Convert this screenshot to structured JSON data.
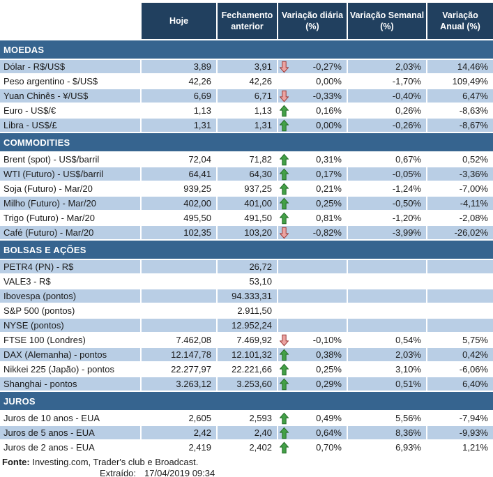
{
  "colors": {
    "header_bg": "#21405f",
    "section_bg": "#36648f",
    "shaded_row_bg": "#b9cee5",
    "up_arrow_fill": "#43a047",
    "up_arrow_stroke": "#256d29",
    "down_arrow_fill": "#eba3a1",
    "down_arrow_stroke": "#9c3a38"
  },
  "chart_data": {
    "type": "table",
    "columns": [
      {
        "key": "hoje",
        "label": "Hoje"
      },
      {
        "key": "fechamento-anterior",
        "label": "Fechamento\nanterior"
      },
      {
        "key": "variacao-diaria",
        "label": "Variação diária\n(%)"
      },
      {
        "key": "variacao-semanal",
        "label": "Variação Semanal\n(%)"
      },
      {
        "key": "variacao-anual",
        "label": "Variação\nAnual (%)"
      }
    ],
    "sections": [
      {
        "key": "moedas",
        "title": "MOEDAS",
        "rows": [
          {
            "label": "Dólar - R$/US$",
            "hoje": "3,89",
            "fechamento": "3,91",
            "arrow": "down",
            "var_diaria": "-0,27%",
            "var_semanal": "2,03%",
            "var_anual": "14,46%",
            "shaded": true
          },
          {
            "label": "Peso argentino - $/US$",
            "hoje": "42,26",
            "fechamento": "42,26",
            "arrow": null,
            "var_diaria": "0,00%",
            "var_semanal": "-1,70%",
            "var_anual": "109,49%",
            "shaded": false
          },
          {
            "label": "Yuan Chinês - ¥/US$",
            "hoje": "6,69",
            "fechamento": "6,71",
            "arrow": "down",
            "var_diaria": "-0,33%",
            "var_semanal": "-0,40%",
            "var_anual": "6,47%",
            "shaded": true
          },
          {
            "label": "Euro - US$/€",
            "hoje": "1,13",
            "fechamento": "1,13",
            "arrow": "up",
            "var_diaria": "0,16%",
            "var_semanal": "0,26%",
            "var_anual": "-8,63%",
            "shaded": false
          },
          {
            "label": "Libra - US$/£",
            "hoje": "1,31",
            "fechamento": "1,31",
            "arrow": "up",
            "var_diaria": "0,00%",
            "var_semanal": "-0,26%",
            "var_anual": "-8,67%",
            "shaded": true
          }
        ]
      },
      {
        "key": "commodities",
        "title": "COMMODITIES",
        "rows": [
          {
            "label": "Brent (spot) - US$/barril",
            "hoje": "72,04",
            "fechamento": "71,82",
            "arrow": "up",
            "var_diaria": "0,31%",
            "var_semanal": "0,67%",
            "var_anual": "0,52%",
            "shaded": false
          },
          {
            "label": "WTI (Futuro) - US$/barril",
            "hoje": "64,41",
            "fechamento": "64,30",
            "arrow": "up",
            "var_diaria": "0,17%",
            "var_semanal": "-0,05%",
            "var_anual": "-3,36%",
            "shaded": true
          },
          {
            "label": "Soja (Futuro) - Mar/20",
            "hoje": "939,25",
            "fechamento": "937,25",
            "arrow": "up",
            "var_diaria": "0,21%",
            "var_semanal": "-1,24%",
            "var_anual": "-7,00%",
            "shaded": false
          },
          {
            "label": "Milho (Futuro) - Mar/20",
            "hoje": "402,00",
            "fechamento": "401,00",
            "arrow": "up",
            "var_diaria": "0,25%",
            "var_semanal": "-0,50%",
            "var_anual": "-4,11%",
            "shaded": true
          },
          {
            "label": "Trigo (Futuro) - Mar/20",
            "hoje": "495,50",
            "fechamento": "491,50",
            "arrow": "up",
            "var_diaria": "0,81%",
            "var_semanal": "-1,20%",
            "var_anual": "-2,08%",
            "shaded": false
          },
          {
            "label": "Café (Futuro) - Mar/20",
            "hoje": "102,35",
            "fechamento": "103,20",
            "arrow": "down",
            "var_diaria": "-0,82%",
            "var_semanal": "-3,99%",
            "var_anual": "-26,02%",
            "shaded": true
          }
        ]
      },
      {
        "key": "bolsas-e-acoes",
        "title": "BOLSAS E AÇÕES",
        "rows": [
          {
            "label": "PETR4 (PN) - R$",
            "hoje": "",
            "fechamento": "26,72",
            "arrow": null,
            "var_diaria": "",
            "var_semanal": "",
            "var_anual": "",
            "shaded": true
          },
          {
            "label": "VALE3 - R$",
            "hoje": "",
            "fechamento": "53,10",
            "arrow": null,
            "var_diaria": "",
            "var_semanal": "",
            "var_anual": "",
            "shaded": false
          },
          {
            "label": "Ibovespa (pontos)",
            "hoje": "",
            "fechamento": "94.333,31",
            "arrow": null,
            "var_diaria": "",
            "var_semanal": "",
            "var_anual": "",
            "shaded": true
          },
          {
            "label": "S&P 500 (pontos)",
            "hoje": "",
            "fechamento": "2.911,50",
            "arrow": null,
            "var_diaria": "",
            "var_semanal": "",
            "var_anual": "",
            "shaded": false
          },
          {
            "label": "NYSE (pontos)",
            "hoje": "",
            "fechamento": "12.952,24",
            "arrow": null,
            "var_diaria": "",
            "var_semanal": "",
            "var_anual": "",
            "shaded": true
          },
          {
            "label": "FTSE 100 (Londres)",
            "hoje": "7.462,08",
            "fechamento": "7.469,92",
            "arrow": "down",
            "var_diaria": "-0,10%",
            "var_semanal": "0,54%",
            "var_anual": "5,75%",
            "shaded": false
          },
          {
            "label": "DAX (Alemanha) - pontos",
            "hoje": "12.147,78",
            "fechamento": "12.101,32",
            "arrow": "up",
            "var_diaria": "0,38%",
            "var_semanal": "2,03%",
            "var_anual": "0,42%",
            "shaded": true
          },
          {
            "label": "Nikkei 225 (Japão) - pontos",
            "hoje": "22.277,97",
            "fechamento": "22.221,66",
            "arrow": "up",
            "var_diaria": "0,25%",
            "var_semanal": "3,10%",
            "var_anual": "-6,06%",
            "shaded": false
          },
          {
            "label": "Shanghai - pontos",
            "hoje": "3.263,12",
            "fechamento": "3.253,60",
            "arrow": "up",
            "var_diaria": "0,29%",
            "var_semanal": "0,51%",
            "var_anual": "6,40%",
            "shaded": true
          }
        ]
      },
      {
        "key": "juros",
        "title": "JUROS",
        "rows": [
          {
            "label": "Juros de 10 anos - EUA",
            "hoje": "2,605",
            "fechamento": "2,593",
            "arrow": "up",
            "var_diaria": "0,49%",
            "var_semanal": "5,56%",
            "var_anual": "-7,94%",
            "shaded": false
          },
          {
            "label": "Juros de 5 anos - EUA",
            "hoje": "2,42",
            "fechamento": "2,40",
            "arrow": "up",
            "var_diaria": "0,64%",
            "var_semanal": "8,36%",
            "var_anual": "-9,93%",
            "shaded": true
          },
          {
            "label": "Juros de 2 anos - EUA",
            "hoje": "2,419",
            "fechamento": "2,402",
            "arrow": "up",
            "var_diaria": "0,70%",
            "var_semanal": "6,93%",
            "var_anual": "1,21%",
            "shaded": false
          }
        ]
      }
    ]
  },
  "footer": {
    "fonte_label": "Fonte:",
    "fonte_text": " Investing.com, Trader's club e Broadcast.",
    "extraido_label": "Extraído:",
    "extraido_value": "17/04/2019 09:34"
  }
}
